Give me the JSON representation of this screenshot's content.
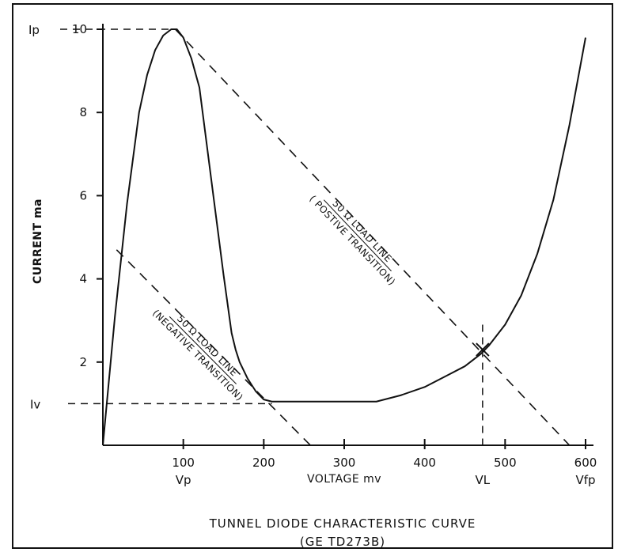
{
  "chart_data": {
    "type": "line",
    "title": "TUNNEL DIODE CHARACTERISTIC CURVE",
    "subtitle": "(GE TD273B)",
    "xlabel": "VOLTAGE mv",
    "ylabel": "CURRENT ma",
    "xlim": [
      0,
      600
    ],
    "ylim": [
      0,
      10
    ],
    "x_ticks": [
      100,
      200,
      300,
      400,
      500,
      600
    ],
    "y_ticks": [
      2,
      4,
      6,
      8,
      10
    ],
    "x_tick_labels": [
      "100",
      "200",
      "300",
      "400",
      "500",
      "600"
    ],
    "y_tick_labels": [
      "2",
      "4",
      "6",
      "8",
      "10"
    ],
    "grid": false,
    "series": [
      {
        "name": "",
        "style": "solid",
        "x": [
          0,
          15,
          30,
          45,
          55,
          65,
          75,
          85,
          92,
          100,
          110,
          120,
          130,
          140,
          150,
          160,
          165,
          170,
          175,
          180,
          185,
          190,
          195,
          200,
          210,
          230,
          260,
          300,
          340,
          370,
          400,
          430,
          450,
          470,
          480,
          500,
          520,
          540,
          560,
          580,
          600
        ],
        "y": [
          0,
          3.1,
          5.8,
          8.0,
          8.9,
          9.5,
          9.85,
          10.0,
          10.0,
          9.8,
          9.3,
          8.6,
          7.1,
          5.6,
          4.1,
          2.7,
          2.3,
          2.0,
          1.8,
          1.6,
          1.45,
          1.3,
          1.2,
          1.1,
          1.05,
          1.05,
          1.05,
          1.05,
          1.05,
          1.2,
          1.4,
          1.7,
          1.9,
          2.2,
          2.4,
          2.9,
          3.6,
          4.6,
          5.9,
          7.7,
          9.8
        ]
      },
      {
        "name": "50 Ω LOAD LINE (POSTIVE TRANSITION)",
        "style": "dashed",
        "x": [
          90,
          580
        ],
        "y": [
          10.0,
          0
        ]
      },
      {
        "name": "50 Ω LOAD LINE (NEGATIVE TRANSITION)",
        "style": "dashed",
        "x": [
          17,
          258
        ],
        "y": [
          4.7,
          0
        ]
      }
    ],
    "reference_lines": [
      {
        "label": "Ip",
        "axis": "y",
        "value": 10.0,
        "x_to": 92
      },
      {
        "label": "Iv",
        "axis": "y",
        "value": 1.0,
        "x_to": 210
      },
      {
        "label": "VL",
        "axis": "x",
        "value": 472,
        "y_from": 0,
        "y_to": 2.9
      }
    ],
    "marker": {
      "label": "",
      "x": 472,
      "y": 2.3
    },
    "x_annotations": [
      {
        "label": "Vp",
        "value": 100
      },
      {
        "label": "VL",
        "value": 472
      },
      {
        "label": "Vfp",
        "value": 600
      }
    ],
    "load_line_labels": {
      "positive": {
        "line1": "50 Ω LOAD LINE",
        "line2": "( POSTIVE TRANSITION)"
      },
      "negative": {
        "line1": "50 Ω LOAD LINE",
        "line2": "(NEGATIVE TRANSITION)"
      }
    }
  }
}
